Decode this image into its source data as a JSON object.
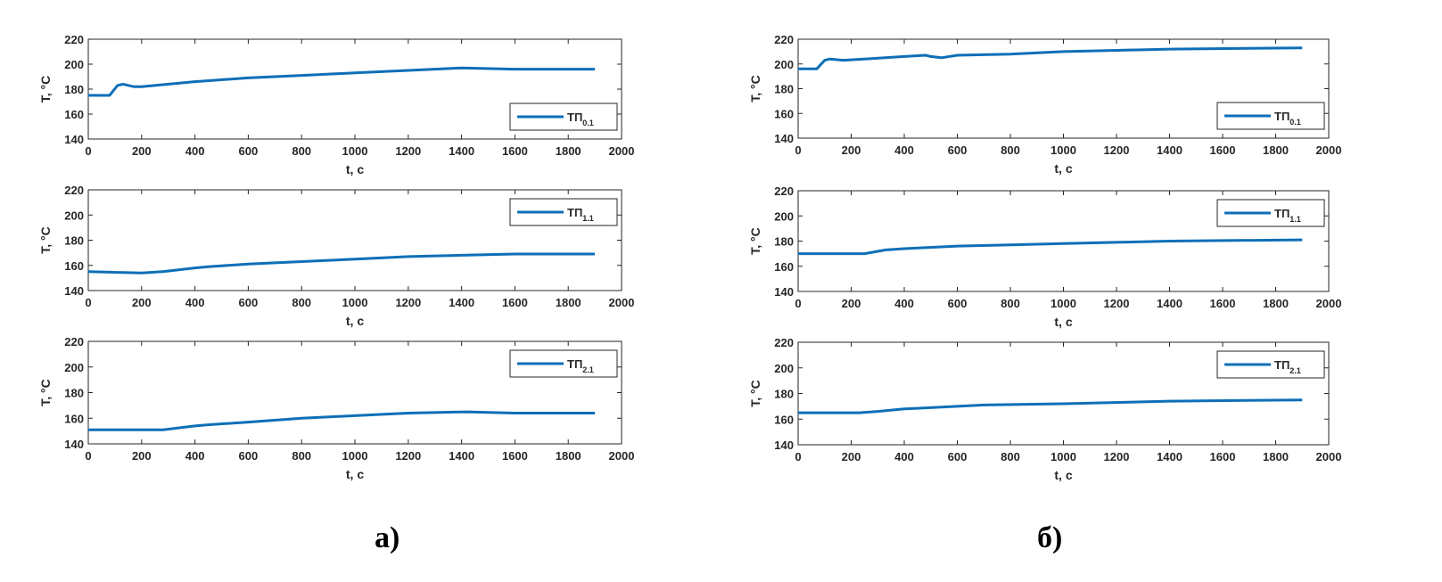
{
  "captions": [
    "а)",
    "б)"
  ],
  "chart_data": [
    {
      "type": "line",
      "panel": "а)",
      "xlabel": "t, c",
      "ylabel": "T, °C",
      "xlim": [
        0,
        2000
      ],
      "ylim": [
        140,
        220
      ],
      "xticks": [
        0,
        200,
        400,
        600,
        800,
        1000,
        1200,
        1400,
        1600,
        1800,
        2000
      ],
      "yticks": [
        140,
        160,
        180,
        200,
        220
      ],
      "legend_position": "bottom-right",
      "color": "#0e6fb8",
      "series": [
        {
          "name": "ТП",
          "sub": "0.1",
          "x": [
            0,
            80,
            110,
            130,
            170,
            200,
            400,
            600,
            800,
            1000,
            1200,
            1400,
            1600,
            1900
          ],
          "y": [
            175,
            175,
            183,
            184,
            182,
            182,
            186,
            189,
            191,
            193,
            195,
            197,
            196,
            196
          ]
        }
      ]
    },
    {
      "type": "line",
      "panel": "а)",
      "xlabel": "t, c",
      "ylabel": "T, °C",
      "xlim": [
        0,
        2000
      ],
      "ylim": [
        140,
        220
      ],
      "xticks": [
        0,
        200,
        400,
        600,
        800,
        1000,
        1200,
        1400,
        1600,
        1800,
        2000
      ],
      "yticks": [
        140,
        160,
        180,
        200,
        220
      ],
      "legend_position": "top-right",
      "color": "#0e6fb8",
      "series": [
        {
          "name": "ТП",
          "sub": "1.1",
          "x": [
            0,
            200,
            280,
            400,
            450,
            600,
            800,
            1000,
            1200,
            1400,
            1600,
            1900
          ],
          "y": [
            155,
            154,
            155,
            158,
            159,
            161,
            163,
            165,
            167,
            168,
            169,
            169
          ]
        }
      ]
    },
    {
      "type": "line",
      "panel": "а)",
      "xlabel": "t, c",
      "ylabel": "T, °C",
      "xlim": [
        0,
        2000
      ],
      "ylim": [
        140,
        220
      ],
      "xticks": [
        0,
        200,
        400,
        600,
        800,
        1000,
        1200,
        1400,
        1600,
        1800,
        2000
      ],
      "yticks": [
        140,
        160,
        180,
        200,
        220
      ],
      "legend_position": "top-right",
      "color": "#0e6fb8",
      "series": [
        {
          "name": "ТП",
          "sub": "2.1",
          "x": [
            0,
            280,
            400,
            460,
            600,
            800,
            1000,
            1200,
            1420,
            1600,
            1900
          ],
          "y": [
            151,
            151,
            154,
            155,
            157,
            160,
            162,
            164,
            165,
            164,
            164
          ]
        }
      ]
    },
    {
      "type": "line",
      "panel": "б)",
      "xlabel": "t, c",
      "ylabel": "T, °C",
      "xlim": [
        0,
        2000
      ],
      "ylim": [
        140,
        220
      ],
      "xticks": [
        0,
        200,
        400,
        600,
        800,
        1000,
        1200,
        1400,
        1600,
        1800,
        2000
      ],
      "yticks": [
        140,
        160,
        180,
        200,
        220
      ],
      "legend_position": "bottom-right",
      "color": "#0e6fb8",
      "series": [
        {
          "name": "ТП",
          "sub": "0.1",
          "x": [
            0,
            70,
            100,
            120,
            170,
            250,
            400,
            480,
            500,
            540,
            600,
            800,
            1000,
            1200,
            1400,
            1900
          ],
          "y": [
            196,
            196,
            203,
            204,
            203,
            204,
            206,
            207,
            206,
            205,
            207,
            208,
            210,
            211,
            212,
            213
          ]
        }
      ]
    },
    {
      "type": "line",
      "panel": "б)",
      "xlabel": "t, c",
      "ylabel": "T, °C",
      "xlim": [
        0,
        2000
      ],
      "ylim": [
        140,
        220
      ],
      "xticks": [
        0,
        200,
        400,
        600,
        800,
        1000,
        1200,
        1400,
        1600,
        1800,
        2000
      ],
      "yticks": [
        140,
        160,
        180,
        200,
        220
      ],
      "legend_position": "top-right",
      "color": "#0e6fb8",
      "series": [
        {
          "name": "ТП",
          "sub": "1.1",
          "x": [
            0,
            250,
            330,
            400,
            600,
            800,
            1000,
            1200,
            1400,
            1900
          ],
          "y": [
            170,
            170,
            173,
            174,
            176,
            177,
            178,
            179,
            180,
            181
          ]
        }
      ]
    },
    {
      "type": "line",
      "panel": "б)",
      "xlabel": "t, c",
      "ylabel": "T, °C",
      "xlim": [
        0,
        2000
      ],
      "ylim": [
        140,
        220
      ],
      "xticks": [
        0,
        200,
        400,
        600,
        800,
        1000,
        1200,
        1400,
        1600,
        1800,
        2000
      ],
      "yticks": [
        140,
        160,
        180,
        200,
        220
      ],
      "legend_position": "top-right",
      "color": "#0e6fb8",
      "series": [
        {
          "name": "ТП",
          "sub": "2.1",
          "x": [
            0,
            230,
            300,
            400,
            600,
            700,
            1000,
            1400,
            1900
          ],
          "y": [
            165,
            165,
            166,
            168,
            170,
            171,
            172,
            174,
            175
          ]
        }
      ]
    }
  ]
}
